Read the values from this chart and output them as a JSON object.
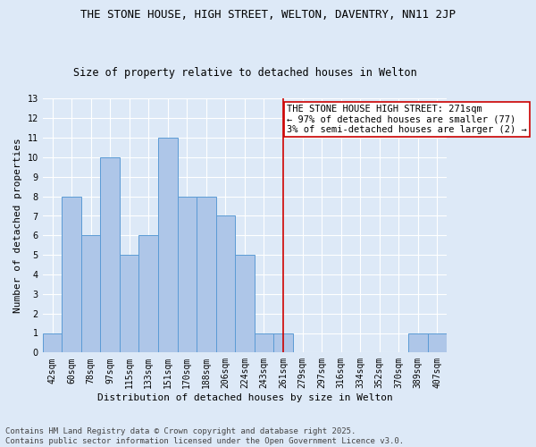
{
  "title": "THE STONE HOUSE, HIGH STREET, WELTON, DAVENTRY, NN11 2JP",
  "subtitle": "Size of property relative to detached houses in Welton",
  "xlabel": "Distribution of detached houses by size in Welton",
  "ylabel": "Number of detached properties",
  "categories": [
    "42sqm",
    "60sqm",
    "78sqm",
    "97sqm",
    "115sqm",
    "133sqm",
    "151sqm",
    "170sqm",
    "188sqm",
    "206sqm",
    "224sqm",
    "243sqm",
    "261sqm",
    "279sqm",
    "297sqm",
    "316sqm",
    "334sqm",
    "352sqm",
    "370sqm",
    "389sqm",
    "407sqm"
  ],
  "values": [
    1,
    8,
    6,
    10,
    5,
    6,
    11,
    8,
    8,
    7,
    5,
    1,
    1,
    0,
    0,
    0,
    0,
    0,
    0,
    1,
    1
  ],
  "bar_color": "#aec6e8",
  "bar_edge_color": "#5b9bd5",
  "vline_x_index": 12,
  "vline_color": "#cc0000",
  "annotation_text": "THE STONE HOUSE HIGH STREET: 271sqm\n← 97% of detached houses are smaller (77)\n3% of semi-detached houses are larger (2) →",
  "annotation_box_color": "#ffffff",
  "annotation_box_edge_color": "#cc0000",
  "ylim": [
    0,
    13
  ],
  "yticks": [
    0,
    1,
    2,
    3,
    4,
    5,
    6,
    7,
    8,
    9,
    10,
    11,
    12,
    13
  ],
  "footer_text": "Contains HM Land Registry data © Crown copyright and database right 2025.\nContains public sector information licensed under the Open Government Licence v3.0.",
  "background_color": "#dde9f7",
  "plot_background_color": "#dde9f7",
  "grid_color": "#ffffff",
  "title_fontsize": 9,
  "subtitle_fontsize": 8.5,
  "axis_label_fontsize": 8,
  "tick_fontsize": 7,
  "annotation_fontsize": 7.5,
  "footer_fontsize": 6.5
}
